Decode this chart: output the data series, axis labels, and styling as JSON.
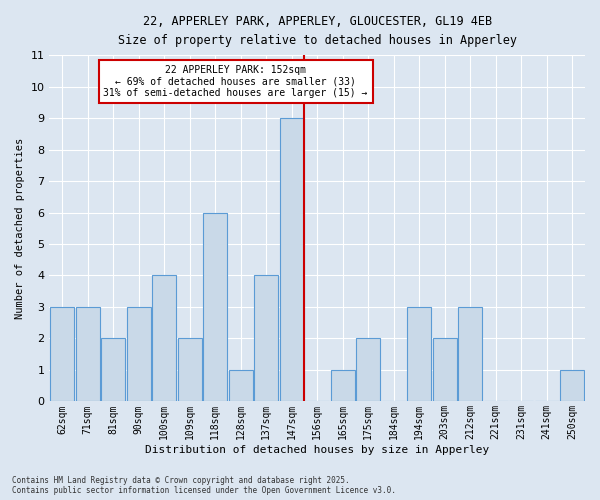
{
  "title1": "22, APPERLEY PARK, APPERLEY, GLOUCESTER, GL19 4EB",
  "title2": "Size of property relative to detached houses in Apperley",
  "xlabel": "Distribution of detached houses by size in Apperley",
  "ylabel": "Number of detached properties",
  "categories": [
    "62sqm",
    "71sqm",
    "81sqm",
    "90sqm",
    "100sqm",
    "109sqm",
    "118sqm",
    "128sqm",
    "137sqm",
    "147sqm",
    "156sqm",
    "165sqm",
    "175sqm",
    "184sqm",
    "194sqm",
    "203sqm",
    "212sqm",
    "221sqm",
    "231sqm",
    "241sqm",
    "250sqm"
  ],
  "values": [
    3,
    3,
    2,
    3,
    4,
    2,
    6,
    1,
    4,
    9,
    0,
    1,
    2,
    0,
    3,
    2,
    3,
    0,
    0,
    0,
    1
  ],
  "bar_color": "#c9d9e8",
  "bar_edge_color": "#5b9bd5",
  "vline_x_index": 9,
  "annotation_text_line1": "22 APPERLEY PARK: 152sqm",
  "annotation_text_line2": "← 69% of detached houses are smaller (33)",
  "annotation_text_line3": "31% of semi-detached houses are larger (15) →",
  "vline_color": "#cc0000",
  "ylim": [
    0,
    11
  ],
  "yticks": [
    0,
    1,
    2,
    3,
    4,
    5,
    6,
    7,
    8,
    9,
    10,
    11
  ],
  "background_color": "#dce6f1",
  "plot_bg_color": "#dce6f1",
  "grid_color": "#ffffff",
  "footer_line1": "Contains HM Land Registry data © Crown copyright and database right 2025.",
  "footer_line2": "Contains public sector information licensed under the Open Government Licence v3.0.",
  "annotation_box_color": "#ffffff",
  "annotation_box_edge": "#cc0000"
}
